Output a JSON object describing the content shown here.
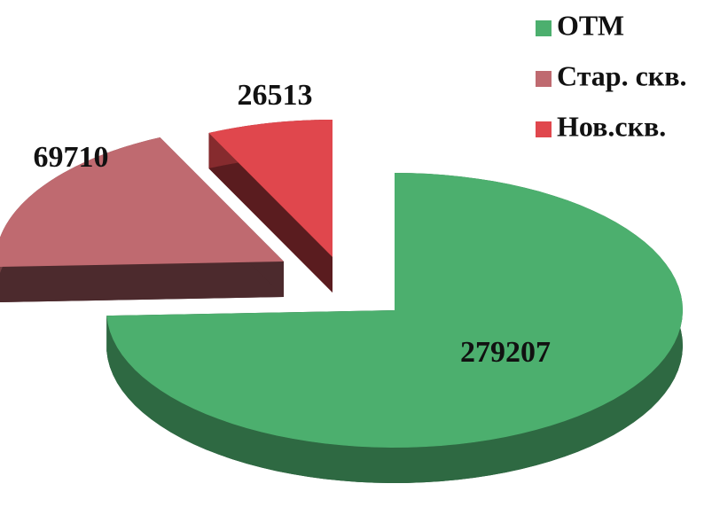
{
  "chart_data": {
    "type": "pie",
    "categories": [
      "ОТМ",
      "Стар. скв.",
      "Нов.скв."
    ],
    "values": [
      279207,
      69710,
      26513
    ],
    "colors": [
      "#4caf6e",
      "#bf6a70",
      "#e0474d"
    ],
    "legend": "top-right"
  }
}
